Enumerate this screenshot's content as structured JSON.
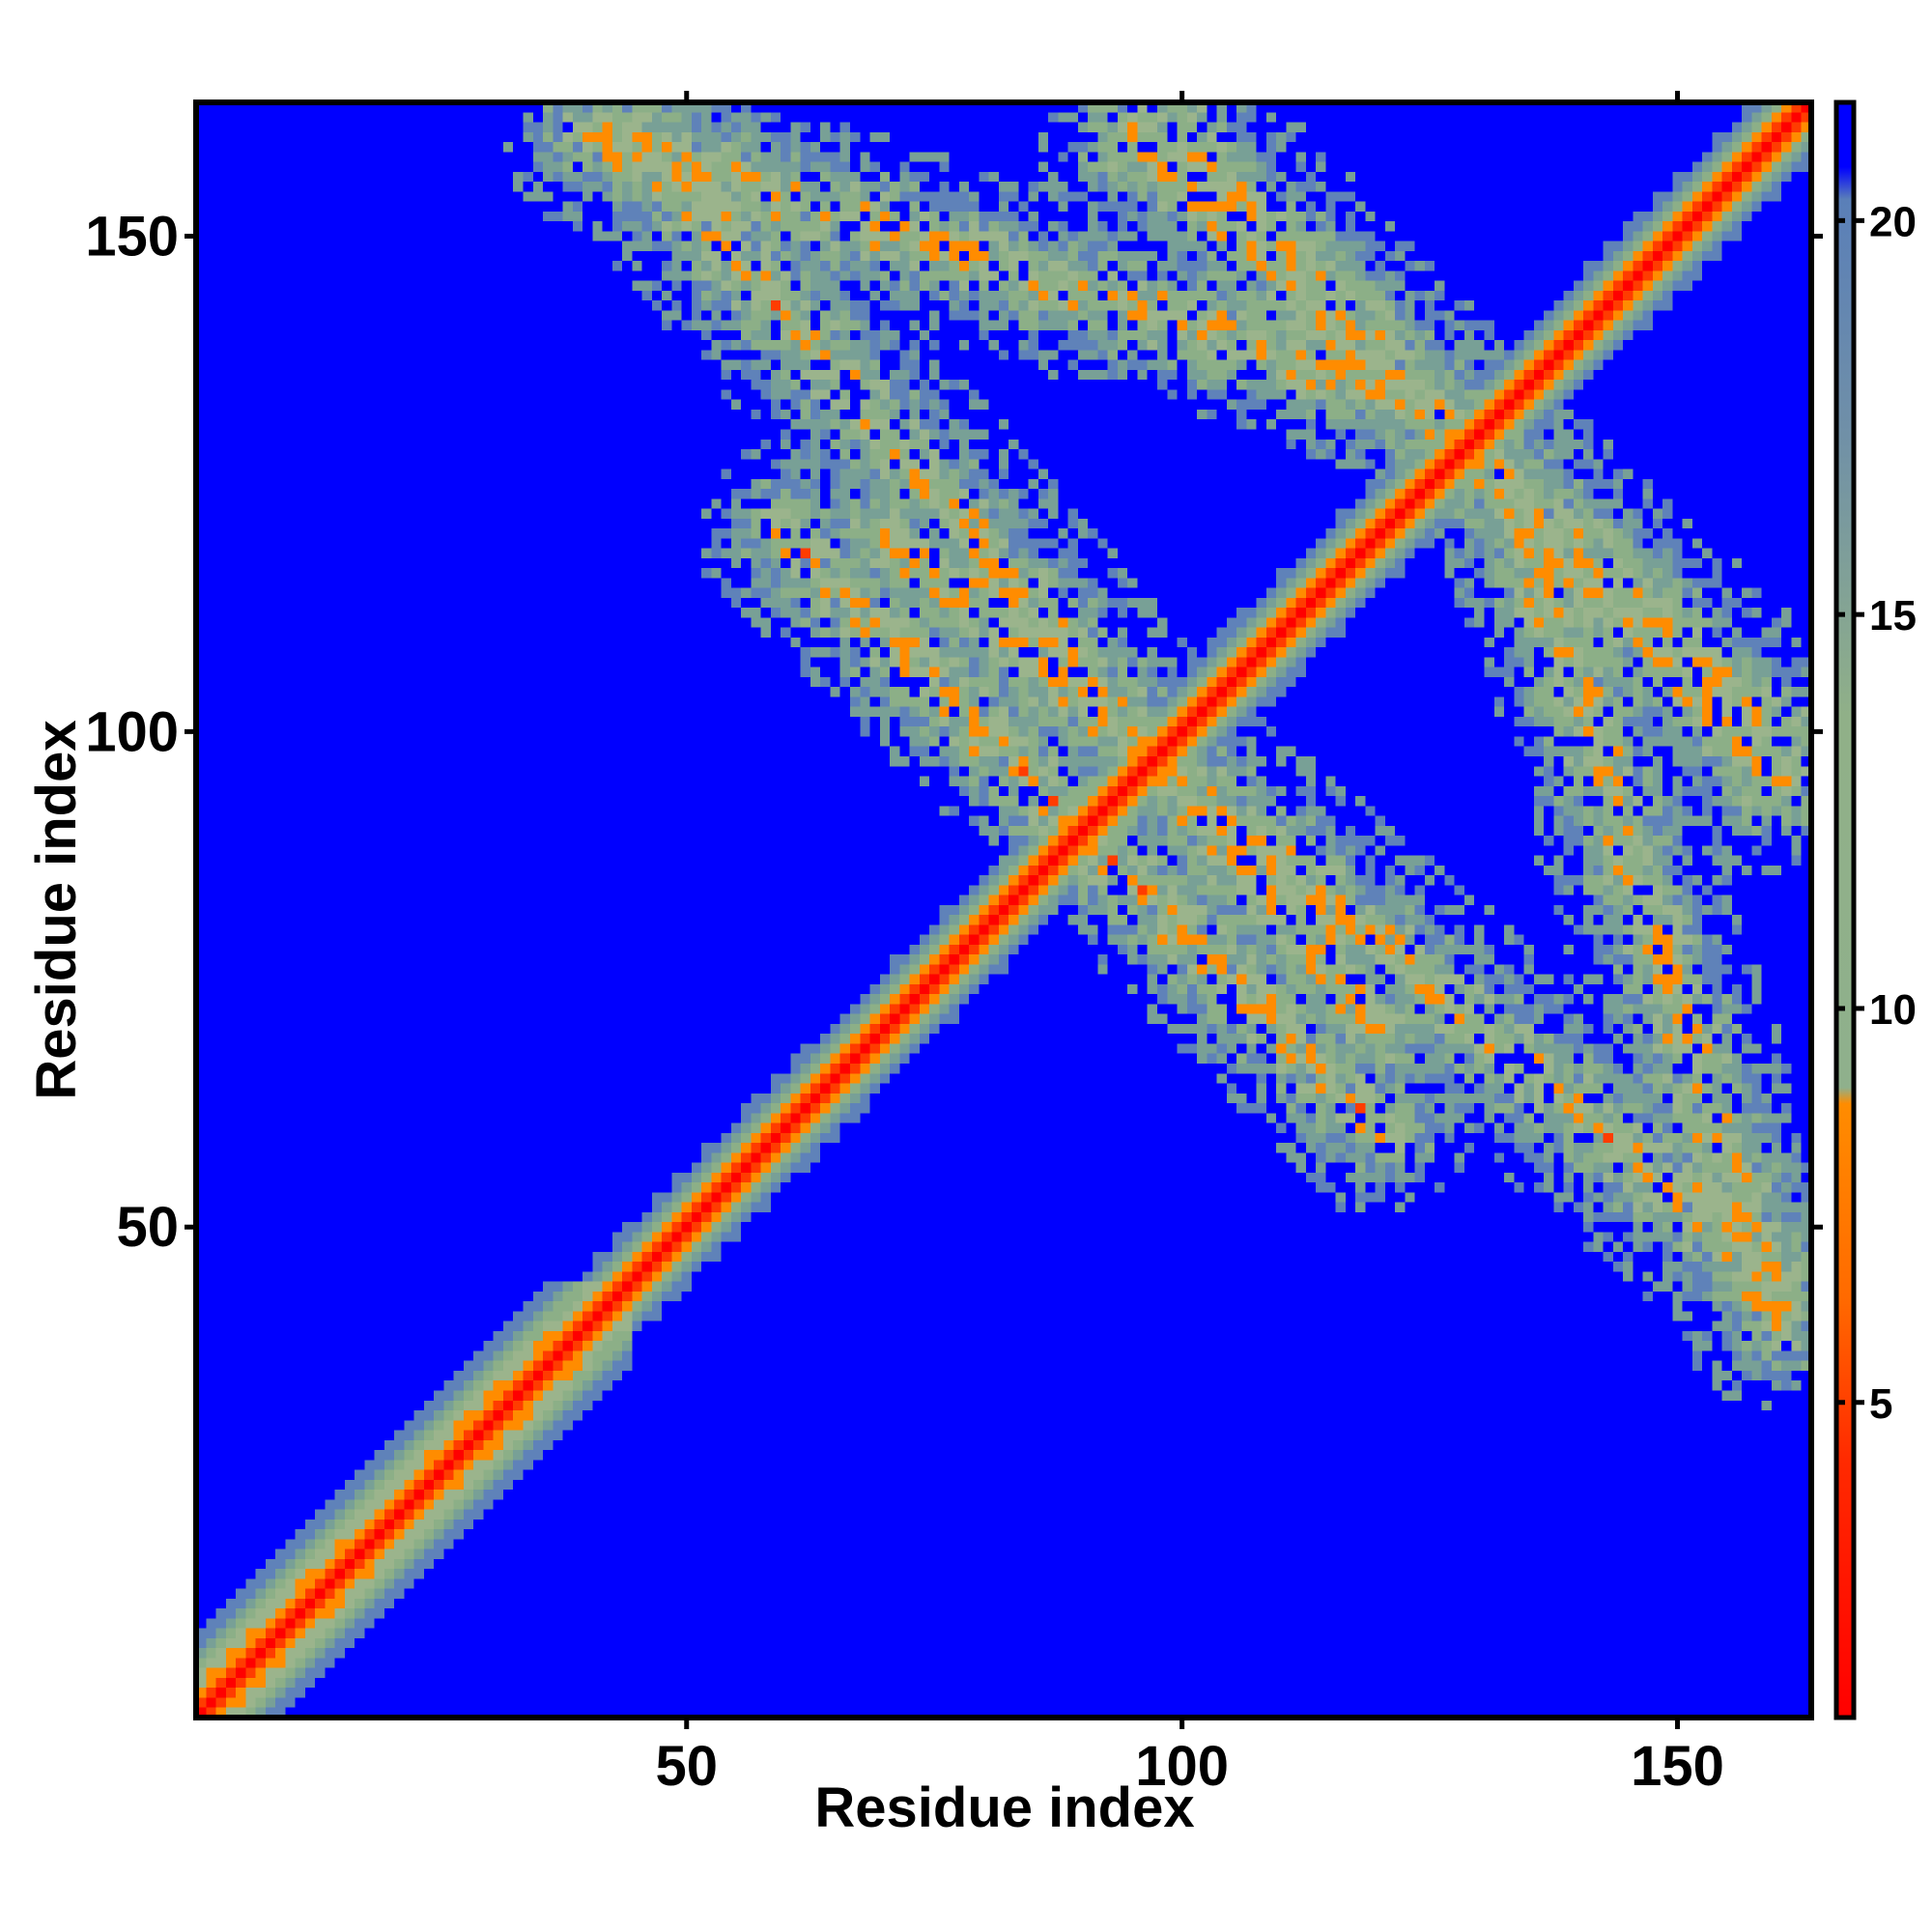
{
  "chart_data": {
    "type": "heatmap",
    "title": "",
    "xlabel": "Residue index",
    "ylabel": "Residue index",
    "residue_count": 163,
    "xlim": [
      0.5,
      163.5
    ],
    "ylim": [
      0.5,
      163.5
    ],
    "x_ticks": [
      50,
      100,
      150
    ],
    "y_ticks": [
      50,
      100,
      150
    ],
    "x_tick_labels": [
      "50",
      "100",
      "150"
    ],
    "y_tick_labels": [
      "50",
      "100",
      "150"
    ],
    "value_range": [
      1,
      21.5
    ],
    "colorbar": {
      "ticks": [
        5,
        10,
        15,
        20
      ],
      "tick_labels": [
        "5",
        "10",
        "15",
        "20"
      ],
      "placement": "right",
      "colors": {
        "near": "#ff0000",
        "mid": "#ff8c00",
        "far": "#8fb08c",
        "farther": "#5a7fb8",
        "none": "#0000ff"
      }
    },
    "features": [
      {
        "kind": "diagonal",
        "description": "main diagonal distance band"
      },
      {
        "kind": "anti-parallel contact band",
        "from": [
          45,
          160
        ],
        "to": [
          120,
          70
        ]
      },
      {
        "kind": "anti-parallel contact band",
        "from": [
          100,
          160
        ],
        "to": [
          160,
          95
        ]
      },
      {
        "kind": "contact band",
        "from": [
          70,
          110
        ],
        "to": [
          120,
          60
        ]
      },
      {
        "kind": "contact band",
        "from": [
          135,
          120
        ],
        "to": [
          160,
          40
        ]
      }
    ]
  }
}
